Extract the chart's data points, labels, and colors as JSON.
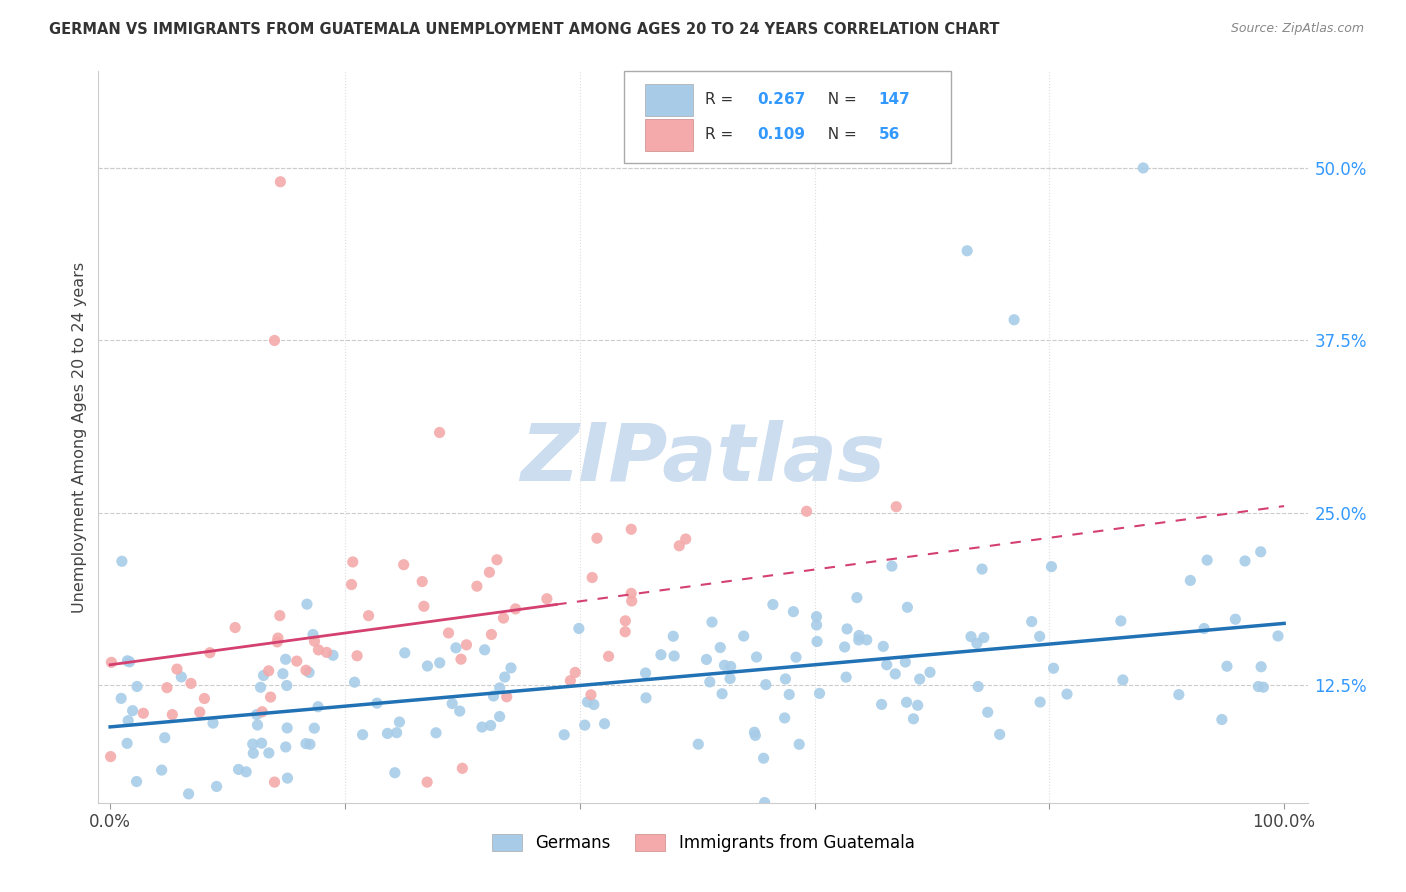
{
  "title": "GERMAN VS IMMIGRANTS FROM GUATEMALA UNEMPLOYMENT AMONG AGES 20 TO 24 YEARS CORRELATION CHART",
  "source": "Source: ZipAtlas.com",
  "ylabel": "Unemployment Among Ages 20 to 24 years",
  "xlim": [
    0.0,
    1.0
  ],
  "ylim": [
    0.04,
    0.55
  ],
  "x_ticks": [
    0.0,
    0.2,
    0.4,
    0.6,
    0.8,
    1.0
  ],
  "x_tick_labels": [
    "0.0%",
    "",
    "",
    "",
    "",
    "100.0%"
  ],
  "y_ticks": [
    0.125,
    0.25,
    0.375,
    0.5
  ],
  "y_tick_labels": [
    "12.5%",
    "25.0%",
    "37.5%",
    "50.0%"
  ],
  "blue_R": 0.267,
  "blue_N": 147,
  "pink_R": 0.109,
  "pink_N": 56,
  "blue_color": "#a8cce8",
  "pink_color": "#f4aaaa",
  "blue_line_color": "#2171b5",
  "pink_line_color": "#d44070",
  "pink_line_dash_color": "#d44070",
  "watermark_color": "#ddeeff",
  "legend_label_blue": "Germans",
  "legend_label_pink": "Immigrants from Guatemala",
  "figsize": [
    14.06,
    8.92
  ],
  "dpi": 100,
  "blue_intercept": 0.095,
  "blue_slope": 0.075,
  "pink_intercept": 0.14,
  "pink_slope": 0.115
}
